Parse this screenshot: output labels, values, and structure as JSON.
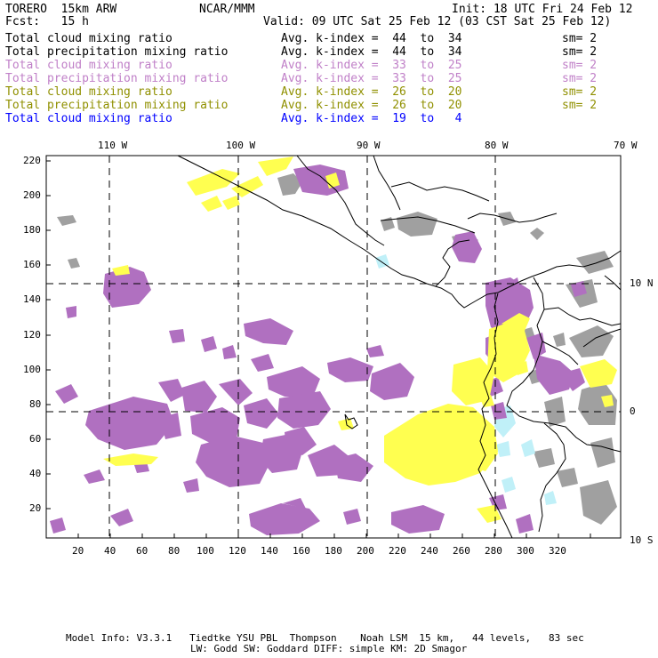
{
  "header": {
    "model": "TORERO  15km ARW",
    "org": "NCAR/MMM",
    "init": "Init: 18 UTC Fri 24 Feb 12",
    "fcst": "Fcst:   15 h",
    "valid": "Valid: 09 UTC Sat 25 Feb 12 (03 CST Sat 25 Feb 12)"
  },
  "legend": [
    {
      "name": "Total cloud mixing ratio",
      "index": "Avg. k-index =  44  to  34",
      "sm": "sm= 2",
      "color": "#000000"
    },
    {
      "name": "Total precipitation mixing ratio",
      "index": "Avg. k-index =  44  to  34",
      "sm": "sm= 2",
      "color": "#000000"
    },
    {
      "name": "Total cloud mixing ratio",
      "index": "Avg. k-index =  33  to  25",
      "sm": "sm= 2",
      "color": "#c080c8"
    },
    {
      "name": "Total precipitation mixing ratio",
      "index": "Avg. k-index =  33  to  25",
      "sm": "sm= 2",
      "color": "#c080c8"
    },
    {
      "name": "Total cloud mixing ratio",
      "index": "Avg. k-index =  26  to  20",
      "sm": "sm= 2",
      "color": "#909000"
    },
    {
      "name": "Total precipitation mixing ratio",
      "index": "Avg. k-index =  26  to  20",
      "sm": "sm= 2",
      "color": "#909000"
    },
    {
      "name": "Total cloud mixing ratio",
      "index": "Avg. k-index =  19  to   4",
      "sm": "",
      "color": "#0000ff"
    }
  ],
  "axes": {
    "top": [
      "110 W",
      "100 W",
      "90 W",
      "80 W",
      "70 W"
    ],
    "right": [
      "10 N",
      "0",
      "10 S"
    ],
    "left": [
      "220",
      "200",
      "180",
      "160",
      "140",
      "120",
      "100",
      "80",
      "60",
      "40",
      "20"
    ],
    "bottom": [
      "20",
      "40",
      "60",
      "80",
      "100",
      "120",
      "140",
      "160",
      "180",
      "200",
      "220",
      "240",
      "260",
      "280",
      "300",
      "320"
    ]
  },
  "footer": {
    "line1": "Model Info: V3.3.1   Tiedtke YSU PBL  Thompson    Noah LSM  15 km,   44 levels,   83 sec",
    "line2": "LW: Godd SW: Goddard DIFF: simple KM: 2D Smagor"
  },
  "colors": {
    "gray": "#a0a0a0",
    "purple": "#b070c0",
    "yellow": "#ffff50",
    "cyan": "#c0f0f8"
  }
}
